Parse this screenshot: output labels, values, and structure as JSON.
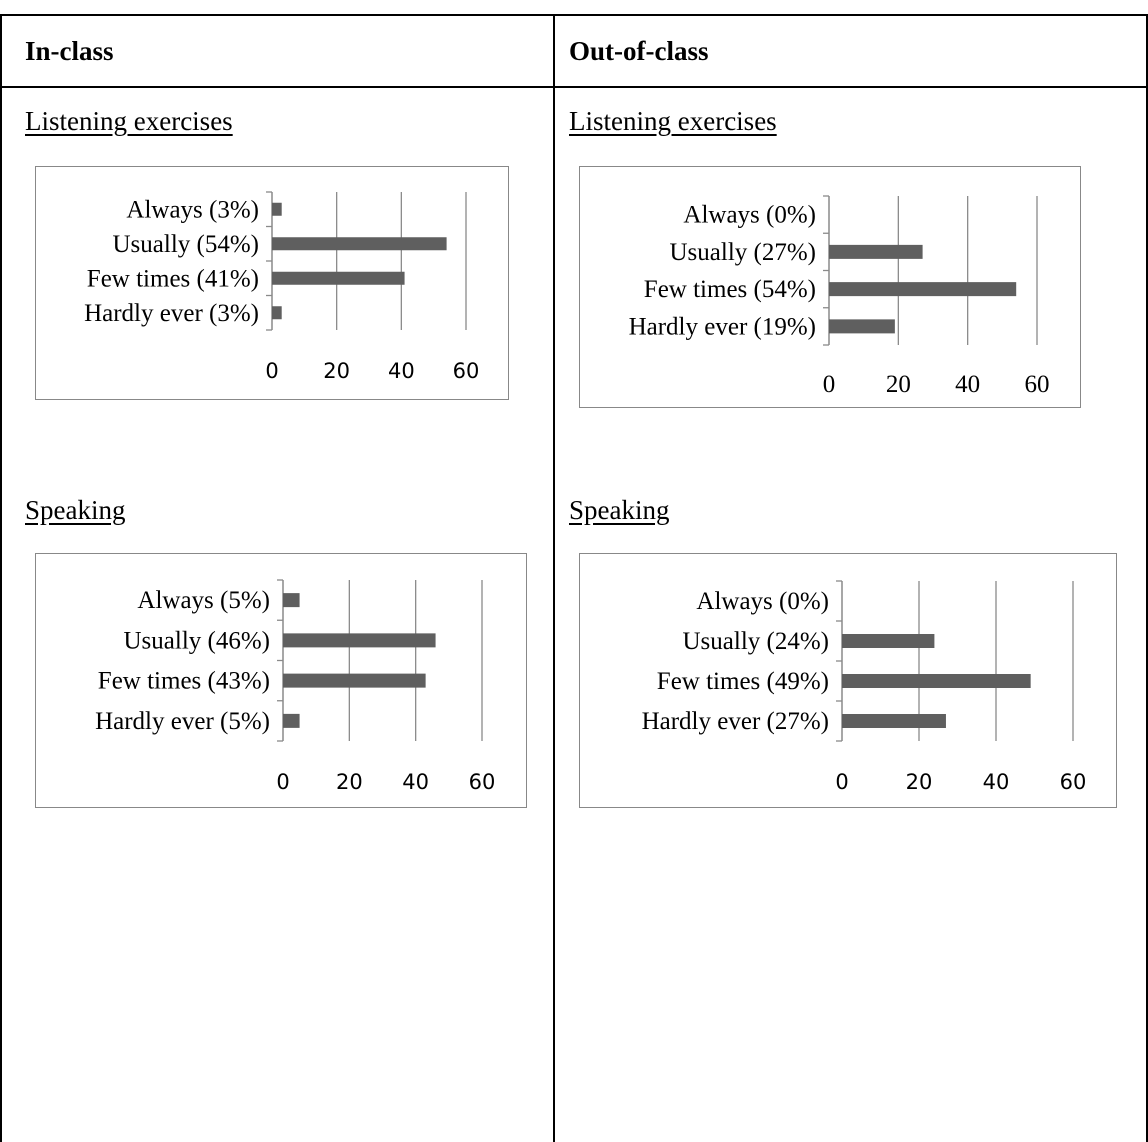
{
  "header": {
    "left": "In-class",
    "right": "Out-of-class"
  },
  "sections": {
    "in_listening": "Listening exercises",
    "out_listening": "Listening exercises",
    "in_speaking": "Speaking",
    "out_speaking": "Speaking"
  },
  "colors": {
    "bar": "#5f5f5f",
    "gridline": "#8a8a8a",
    "border": "#000000"
  },
  "chart_data": [
    {
      "id": "in_listening",
      "type": "bar",
      "orientation": "horizontal",
      "categories": [
        "Always (3%)",
        "Usually (54%)",
        "Few times (41%)",
        "Hardly ever (3%)"
      ],
      "values": [
        3,
        54,
        41,
        3
      ],
      "xlim": [
        0,
        60
      ],
      "xticks": [
        "0",
        "20",
        "40",
        "60"
      ],
      "grid": true
    },
    {
      "id": "out_listening",
      "type": "bar",
      "orientation": "horizontal",
      "categories": [
        "Always (0%)",
        "Usually (27%)",
        "Few times (54%)",
        "Hardly ever (19%)"
      ],
      "values": [
        0,
        27,
        54,
        19
      ],
      "xlim": [
        0,
        60
      ],
      "xticks": [
        "0",
        "20",
        "40",
        "60"
      ],
      "grid": true
    },
    {
      "id": "in_speaking",
      "type": "bar",
      "orientation": "horizontal",
      "categories": [
        "Always (5%)",
        "Usually (46%)",
        "Few times (43%)",
        "Hardly ever (5%)"
      ],
      "values": [
        5,
        46,
        43,
        5
      ],
      "xlim": [
        0,
        60
      ],
      "xticks": [
        "0",
        "20",
        "40",
        "60"
      ],
      "grid": true
    },
    {
      "id": "out_speaking",
      "type": "bar",
      "orientation": "horizontal",
      "categories": [
        "Always (0%)",
        "Usually (24%)",
        "Few times (49%)",
        "Hardly ever (27%)"
      ],
      "values": [
        0,
        24,
        49,
        27
      ],
      "xlim": [
        0,
        60
      ],
      "xticks": [
        "0",
        "20",
        "40",
        "60"
      ],
      "grid": true
    }
  ]
}
